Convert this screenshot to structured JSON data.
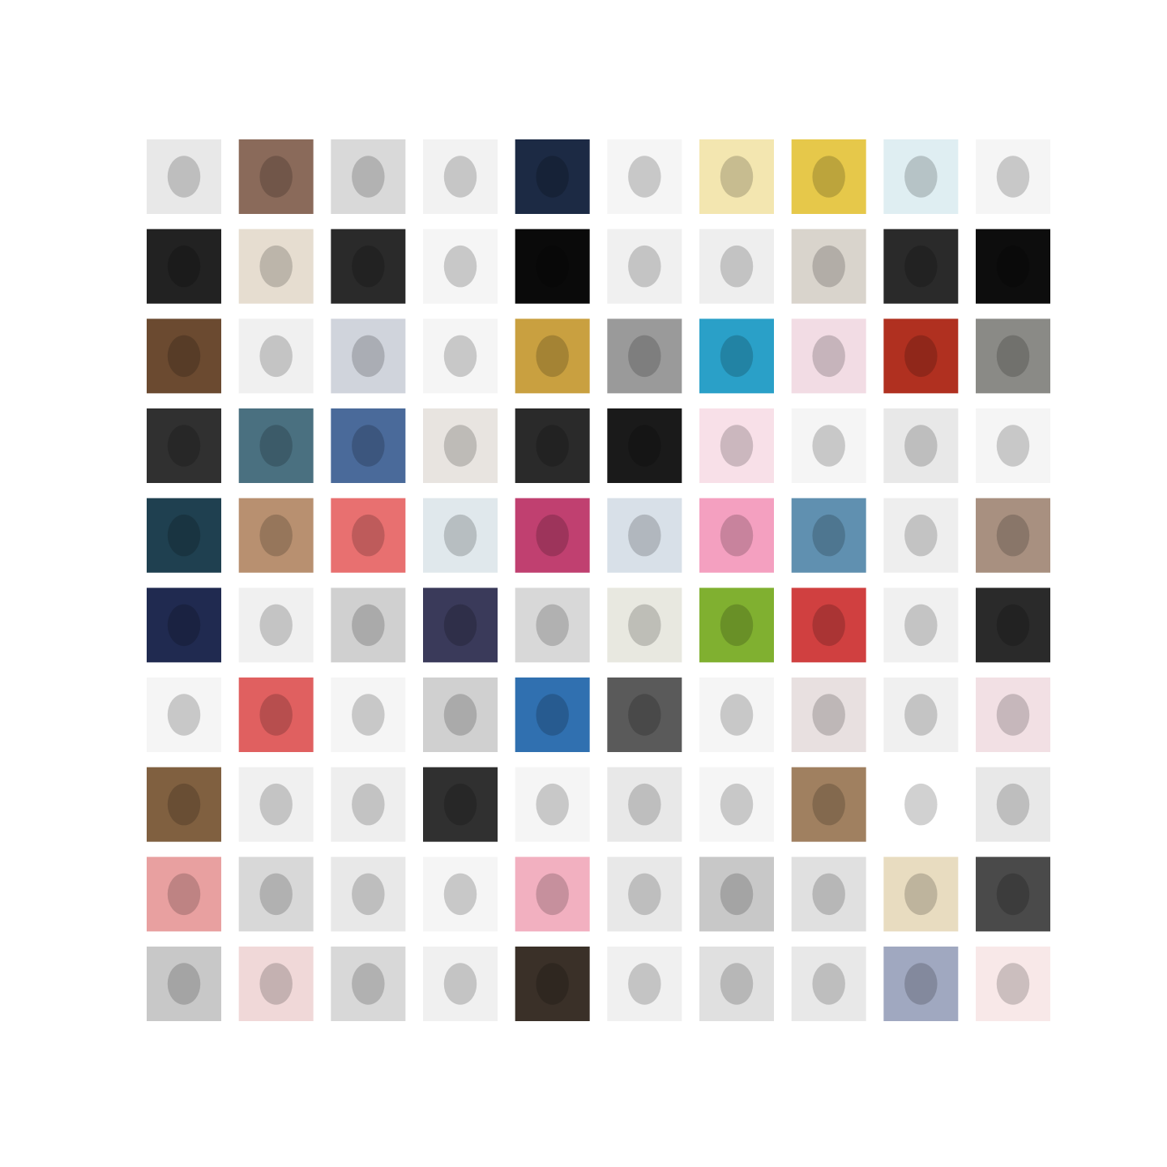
{
  "grid": {
    "rows": 10,
    "columns": 10,
    "tiles": [
      "#e8e8e8",
      "#8a6a5a",
      "#d9d9d9",
      "#f2f2f2",
      "#1c2a44",
      "#f5f5f5",
      "#f3e6b0",
      "#e6c84a",
      "#dfeef2",
      "#f5f5f5",
      "#222222",
      "#e6ddd0",
      "#2a2a2a",
      "#f5f5f5",
      "#0a0a0a",
      "#f0f0f0",
      "#eeeeee",
      "#d9d4cc",
      "#2a2a2a",
      "#0d0d0d",
      "#6b4a30",
      "#f0f0f0",
      "#d0d4dc",
      "#f5f5f5",
      "#c9a040",
      "#9a9a9a",
      "#2aa0c8",
      "#f2dce4",
      "#b03020",
      "#8a8a86",
      "#303030",
      "#4a7080",
      "#4a6a9a",
      "#e8e4e0",
      "#2a2a2a",
      "#1a1a1a",
      "#f8e0e8",
      "#f5f5f5",
      "#e8e8e8",
      "#f5f5f5",
      "#1f4050",
      "#b89070",
      "#e87070",
      "#e0e8ec",
      "#c04070",
      "#d8e0e8",
      "#f4a0c0",
      "#6090b0",
      "#eeeeee",
      "#a89080",
      "#202a50",
      "#f0f0f0",
      "#d0d0d0",
      "#3a3a5a",
      "#d8d8d8",
      "#e8e8e0",
      "#80b030",
      "#d04040",
      "#f0f0f0",
      "#2a2a2a",
      "#f5f5f5",
      "#e06060",
      "#f5f5f5",
      "#d0d0d0",
      "#3070b0",
      "#5a5a5a",
      "#f5f5f5",
      "#e8e0e0",
      "#f0f0f0",
      "#f2e0e4",
      "#806040",
      "#f0f0f0",
      "#eeeeee",
      "#303030",
      "#f5f5f5",
      "#e8e8e8",
      "#f5f5f5",
      "#a08060",
      "#ffffff",
      "#e8e8e8",
      "#e8a0a0",
      "#d8d8d8",
      "#e8e8e8",
      "#f5f5f5",
      "#f2b0c0",
      "#e8e8e8",
      "#c8c8c8",
      "#e0e0e0",
      "#e8dcc0",
      "#4a4a4a",
      "#c8c8c8",
      "#f0d8d8",
      "#d8d8d8",
      "#f0f0f0",
      "#3a3028",
      "#f0f0f0",
      "#e0e0e0",
      "#e8e8e8",
      "#a0a8c0",
      "#f8e8e8"
    ]
  }
}
